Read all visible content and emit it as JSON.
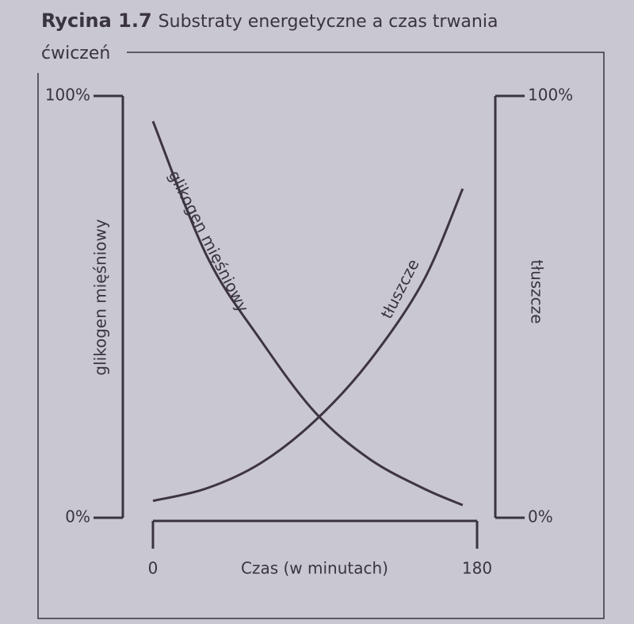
{
  "chart_data": {
    "type": "line",
    "figure_label": "Rycina 1.7",
    "title": "Substraty energetyczne a czas trwania ćwiczeń",
    "xlabel": "Czas (w minutach)",
    "ylabel": "glikogen mięśniowy",
    "y2label": "tłuszcze",
    "x": [
      0,
      30,
      60,
      90,
      120,
      150,
      172
    ],
    "series": [
      {
        "name": "glikogen mięśniowy",
        "color": "#3e3442",
        "values": [
          94,
          62,
          42,
          25,
          14,
          7,
          3
        ]
      },
      {
        "name": "tłuszcze",
        "color": "#3e3442",
        "axis": "y2",
        "values": [
          4,
          7,
          13,
          23,
          37,
          56,
          78
        ]
      }
    ],
    "xlim": [
      0,
      180
    ],
    "xticks": [
      0,
      180
    ],
    "ylim": [
      0,
      100
    ],
    "yticks": [
      {
        "value": 0,
        "label": "0%"
      },
      {
        "value": 100,
        "label": "100%"
      }
    ],
    "y2lim": [
      0,
      100
    ],
    "y2ticks": [
      {
        "value": 0,
        "label": "0%"
      },
      {
        "value": 100,
        "label": "100%"
      }
    ],
    "grid": false
  }
}
